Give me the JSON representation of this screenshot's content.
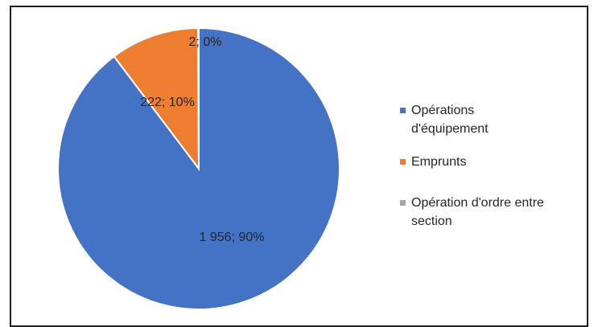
{
  "chart_data": {
    "type": "pie",
    "title": "",
    "categories": [
      "Opérations d'équipement",
      "Emprunts",
      "Opération d'ordre entre section"
    ],
    "values": [
      1956,
      222,
      2
    ],
    "percentages": [
      90,
      10,
      0
    ],
    "data_labels": [
      "1 956; 90%",
      "222; 10%",
      "2; 0%"
    ],
    "colors": [
      "#4472C4",
      "#ED7D31",
      "#A5A5A5"
    ],
    "legend_placement": "right",
    "start_angle_deg": 0,
    "direction": "clockwise"
  }
}
